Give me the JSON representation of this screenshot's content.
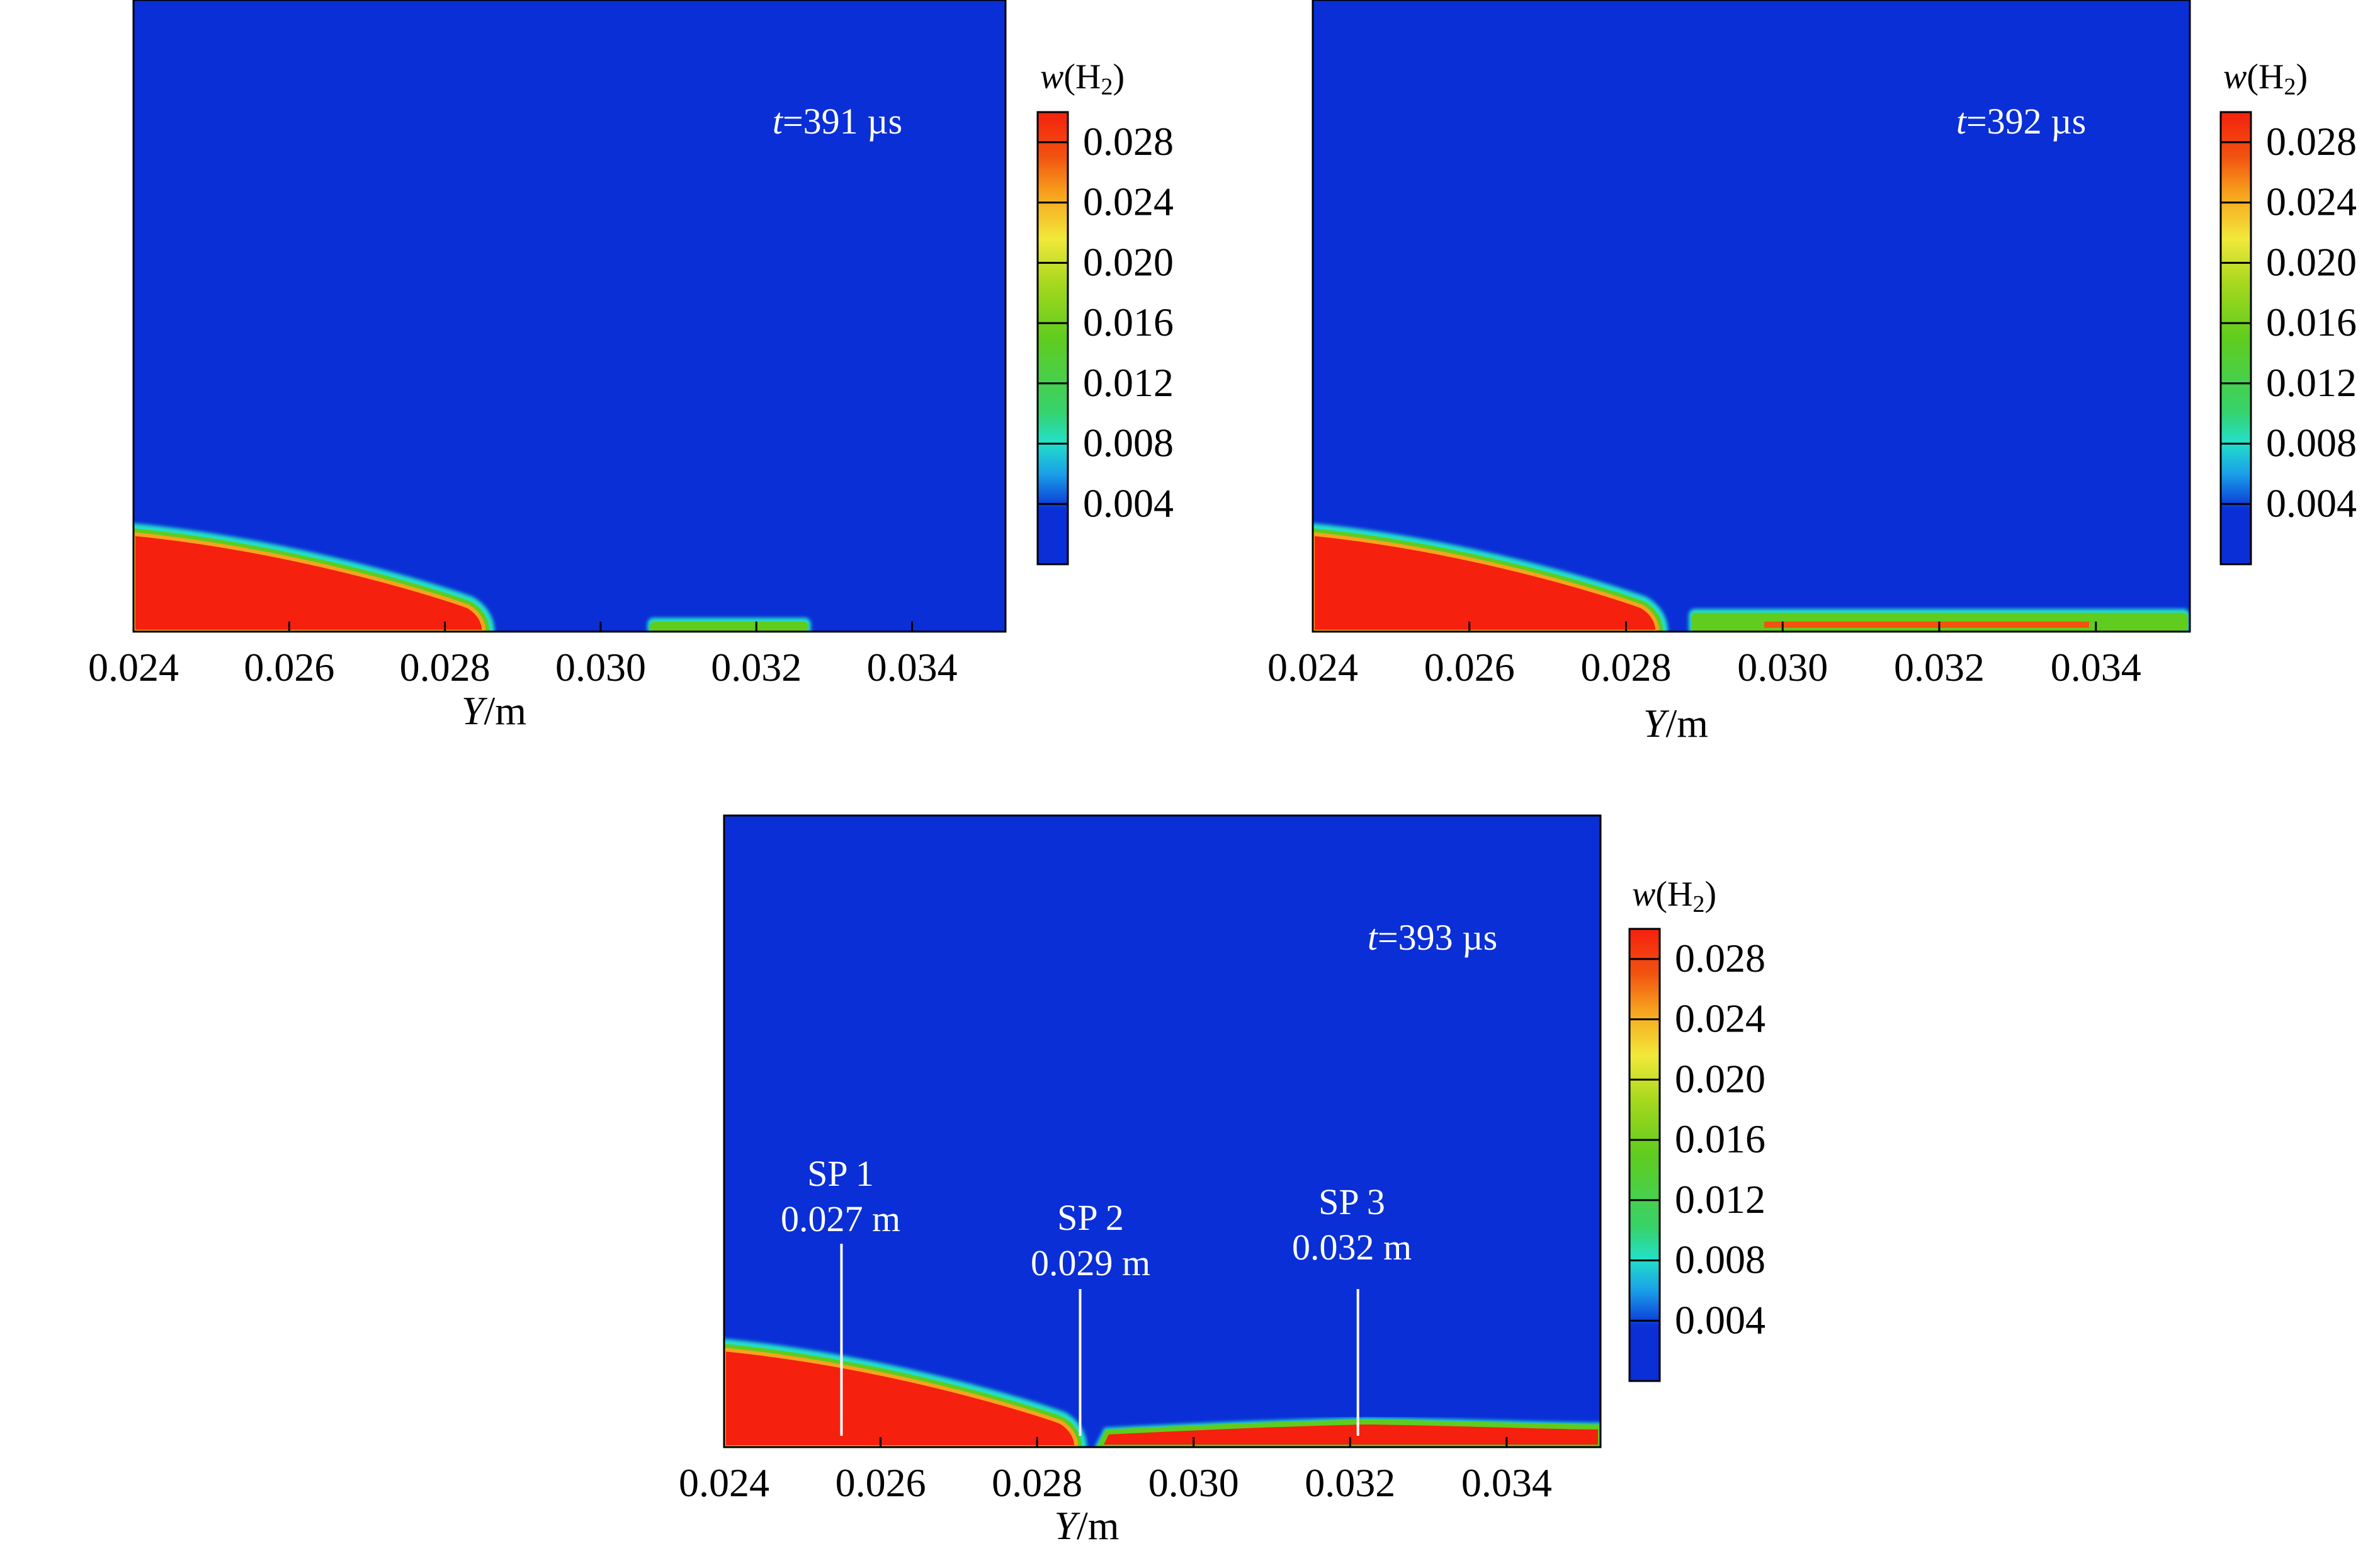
{
  "chart_data": [
    {
      "type": "heatmap",
      "panel": "top-left",
      "time_label": "t=391 µs",
      "xlabel": "Y/m",
      "xlim": [
        0.024,
        0.0352
      ],
      "x_ticks": [
        "0.024",
        "0.026",
        "0.028",
        "0.030",
        "0.032",
        "0.034"
      ],
      "colorbar_title": "w(H2)",
      "colorbar_ticks": [
        "0.028",
        "0.024",
        "0.020",
        "0.016",
        "0.012",
        "0.008",
        "0.004"
      ],
      "colorbar_range": [
        0,
        0.03
      ],
      "regions": [
        {
          "kind": "high-concentration",
          "x_start": 0.024,
          "x_end": 0.0285,
          "value": 0.03
        },
        {
          "kind": "mixing-layer",
          "x_start": 0.0306,
          "x_end": 0.0327,
          "value": 0.012
        }
      ],
      "annotations": []
    },
    {
      "type": "heatmap",
      "panel": "top-right",
      "time_label": "t=392 µs",
      "xlabel": "Y/m",
      "xlim": [
        0.024,
        0.0352
      ],
      "x_ticks": [
        "0.024",
        "0.026",
        "0.028",
        "0.030",
        "0.032",
        "0.034"
      ],
      "colorbar_title": "w(H2)",
      "colorbar_ticks": [
        "0.028",
        "0.024",
        "0.020",
        "0.016",
        "0.012",
        "0.008",
        "0.004"
      ],
      "colorbar_range": [
        0,
        0.03
      ],
      "regions": [
        {
          "kind": "high-concentration",
          "x_start": 0.024,
          "x_end": 0.0284,
          "value": 0.03
        },
        {
          "kind": "mixing-layer",
          "x_start": 0.0288,
          "x_end": 0.0352,
          "value": 0.02
        }
      ],
      "annotations": []
    },
    {
      "type": "heatmap",
      "panel": "bottom",
      "time_label": "t=393 µs",
      "xlabel": "Y/m",
      "xlim": [
        0.024,
        0.0352
      ],
      "x_ticks": [
        "0.024",
        "0.026",
        "0.028",
        "0.030",
        "0.032",
        "0.034"
      ],
      "colorbar_title": "w(H2)",
      "colorbar_ticks": [
        "0.028",
        "0.024",
        "0.020",
        "0.016",
        "0.012",
        "0.008",
        "0.004"
      ],
      "colorbar_range": [
        0,
        0.03
      ],
      "regions": [
        {
          "kind": "high-concentration",
          "x_start": 0.024,
          "x_end": 0.0285,
          "value": 0.03
        },
        {
          "kind": "high-concentration-layer",
          "x_start": 0.0288,
          "x_end": 0.0352,
          "value": 0.03
        }
      ],
      "annotations": [
        {
          "name": "SP 1",
          "value": "0.027 m"
        },
        {
          "name": "SP 2",
          "value": "0.029 m"
        },
        {
          "name": "SP 3",
          "value": "0.032 m"
        }
      ]
    }
  ],
  "colors": {
    "background_field": "#0a2fd6",
    "colormap": [
      "#0a2fd6",
      "#1aa0e8",
      "#22e0c8",
      "#37d26a",
      "#5fcc1e",
      "#a6d81e",
      "#f2e83a",
      "#f7a21e",
      "#f25410",
      "#f5200e"
    ]
  }
}
